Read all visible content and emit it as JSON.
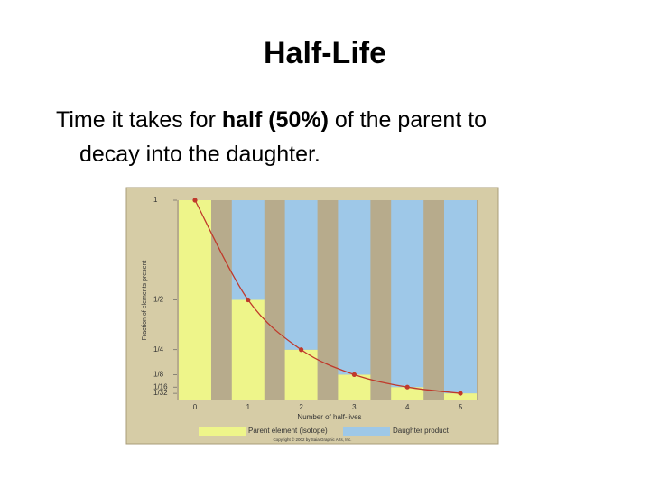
{
  "slide": {
    "title": "Half-Life",
    "body": [
      "Time it takes for ",
      "half (50%)",
      " of the parent to",
      "decay into the daughter."
    ]
  },
  "chart_data": {
    "type": "bar",
    "stacked": true,
    "x": [
      0,
      1,
      2,
      3,
      4,
      5
    ],
    "series": [
      {
        "name": "Parent element (isotope)",
        "color": "#eef58a",
        "values": [
          1,
          0.5,
          0.25,
          0.125,
          0.0625,
          0.03125
        ]
      },
      {
        "name": "Daughter product",
        "color": "#9ec8e8",
        "values": [
          0,
          0.5,
          0.75,
          0.875,
          0.9375,
          0.96875
        ]
      }
    ],
    "curve_color": "#c0392b",
    "ylim": [
      0,
      1
    ],
    "yticks": [
      1,
      {
        "value": 0.5,
        "label": "1/2"
      },
      {
        "value": 0.25,
        "label": "1/4"
      },
      {
        "value": 0.125,
        "label": "1/8"
      },
      {
        "value": 0.0625,
        "label": "1/16"
      },
      {
        "value": 0.03125,
        "label": "1/32"
      }
    ],
    "xlabel": "Number of half-lives",
    "ylabel": "Fraction of elements present",
    "copyright": "Copyright © 2002 by Saia Graphic Arts, Inc."
  }
}
